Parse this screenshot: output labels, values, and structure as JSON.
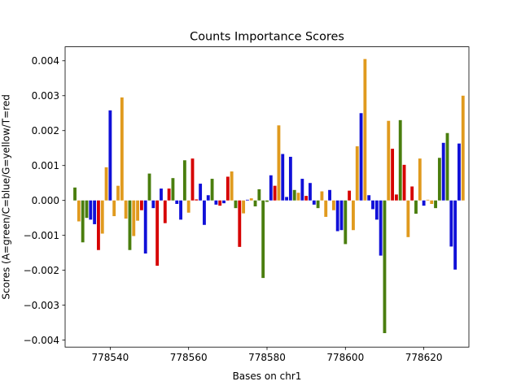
{
  "chart_data": {
    "type": "bar",
    "title": "Counts Importance Scores",
    "xlabel": "Bases on chr1",
    "ylabel": "Scores (A=green/C=blue/G=yellow/T=red",
    "xlim": [
      778528.5,
      778631.5
    ],
    "ylim": [
      -0.0042,
      0.0044
    ],
    "xticks": [
      778540,
      778560,
      778580,
      778600,
      778620
    ],
    "xtick_labels": [
      "778540",
      "778560",
      "778580",
      "778600",
      "778620"
    ],
    "yticks": [
      -0.004,
      -0.003,
      -0.002,
      -0.001,
      0.0,
      0.001,
      0.002,
      0.003,
      0.004
    ],
    "ytick_labels": [
      "−0.004",
      "−0.003",
      "−0.002",
      "−0.001",
      "0.000",
      "0.001",
      "0.002",
      "0.003",
      "0.004"
    ],
    "grid": false,
    "base_colors": {
      "A": "#4a7e0e",
      "C": "#1010d8",
      "G": "#e09a1e",
      "T": "#d60000"
    },
    "bars": [
      {
        "x": 778531,
        "base": "A",
        "value": 0.00037
      },
      {
        "x": 778532,
        "base": "G",
        "value": -0.0006
      },
      {
        "x": 778533,
        "base": "A",
        "value": -0.0012
      },
      {
        "x": 778534,
        "base": "A",
        "value": -0.0005
      },
      {
        "x": 778535,
        "base": "C",
        "value": -0.00055
      },
      {
        "x": 778536,
        "base": "C",
        "value": -0.00068
      },
      {
        "x": 778537,
        "base": "T",
        "value": -0.00142
      },
      {
        "x": 778538,
        "base": "G",
        "value": -0.00095
      },
      {
        "x": 778539,
        "base": "G",
        "value": 0.00095
      },
      {
        "x": 778540,
        "base": "C",
        "value": 0.00258
      },
      {
        "x": 778541,
        "base": "G",
        "value": -0.00045
      },
      {
        "x": 778542,
        "base": "G",
        "value": 0.00042
      },
      {
        "x": 778543,
        "base": "G",
        "value": 0.00295
      },
      {
        "x": 778544,
        "base": "G",
        "value": -0.00052
      },
      {
        "x": 778545,
        "base": "A",
        "value": -0.00142
      },
      {
        "x": 778546,
        "base": "G",
        "value": -0.00102
      },
      {
        "x": 778547,
        "base": "G",
        "value": -0.00058
      },
      {
        "x": 778548,
        "base": "T",
        "value": -0.00028
      },
      {
        "x": 778549,
        "base": "C",
        "value": -0.00152
      },
      {
        "x": 778550,
        "base": "A",
        "value": 0.00077
      },
      {
        "x": 778551,
        "base": "C",
        "value": -0.00022
      },
      {
        "x": 778552,
        "base": "T",
        "value": -0.00187
      },
      {
        "x": 778553,
        "base": "C",
        "value": 0.00034
      },
      {
        "x": 778554,
        "base": "T",
        "value": -0.00065
      },
      {
        "x": 778555,
        "base": "T",
        "value": 0.00034
      },
      {
        "x": 778556,
        "base": "A",
        "value": 0.00064
      },
      {
        "x": 778557,
        "base": "C",
        "value": -0.0001
      },
      {
        "x": 778558,
        "base": "C",
        "value": -0.00055
      },
      {
        "x": 778559,
        "base": "A",
        "value": 0.00115
      },
      {
        "x": 778560,
        "base": "G",
        "value": -0.00035
      },
      {
        "x": 778561,
        "base": "T",
        "value": 0.0012
      },
      {
        "x": 778562,
        "base": "T",
        "value": 3e-05
      },
      {
        "x": 778563,
        "base": "C",
        "value": 0.00048
      },
      {
        "x": 778564,
        "base": "C",
        "value": -0.0007
      },
      {
        "x": 778565,
        "base": "C",
        "value": 0.00015
      },
      {
        "x": 778566,
        "base": "A",
        "value": 0.00062
      },
      {
        "x": 778567,
        "base": "C",
        "value": -0.00012
      },
      {
        "x": 778568,
        "base": "T",
        "value": -0.00015
      },
      {
        "x": 778569,
        "base": "C",
        "value": -8e-05
      },
      {
        "x": 778570,
        "base": "T",
        "value": 0.00068
      },
      {
        "x": 778571,
        "base": "G",
        "value": 0.00083
      },
      {
        "x": 778572,
        "base": "A",
        "value": -0.00022
      },
      {
        "x": 778573,
        "base": "T",
        "value": -0.00133
      },
      {
        "x": 778574,
        "base": "G",
        "value": -0.00037
      },
      {
        "x": 778575,
        "base": "C",
        "value": 2e-05
      },
      {
        "x": 778576,
        "base": "G",
        "value": 6e-05
      },
      {
        "x": 778577,
        "base": "A",
        "value": -0.00017
      },
      {
        "x": 778578,
        "base": "A",
        "value": 0.00032
      },
      {
        "x": 778579,
        "base": "A",
        "value": -0.00222
      },
      {
        "x": 778580,
        "base": "A",
        "value": -4e-05
      },
      {
        "x": 778581,
        "base": "C",
        "value": 0.00072
      },
      {
        "x": 778582,
        "base": "T",
        "value": 0.00042
      },
      {
        "x": 778583,
        "base": "G",
        "value": 0.00215
      },
      {
        "x": 778584,
        "base": "C",
        "value": 0.00133
      },
      {
        "x": 778585,
        "base": "C",
        "value": 0.0001
      },
      {
        "x": 778586,
        "base": "C",
        "value": 0.00125
      },
      {
        "x": 778587,
        "base": "A",
        "value": 0.0003
      },
      {
        "x": 778588,
        "base": "G",
        "value": 0.00022
      },
      {
        "x": 778589,
        "base": "C",
        "value": 0.00062
      },
      {
        "x": 778590,
        "base": "T",
        "value": 0.00013
      },
      {
        "x": 778591,
        "base": "C",
        "value": 0.0005
      },
      {
        "x": 778592,
        "base": "C",
        "value": -0.00012
      },
      {
        "x": 778593,
        "base": "A",
        "value": -0.00022
      },
      {
        "x": 778594,
        "base": "G",
        "value": 0.00026
      },
      {
        "x": 778595,
        "base": "G",
        "value": -0.00047
      },
      {
        "x": 778596,
        "base": "C",
        "value": 0.0003
      },
      {
        "x": 778597,
        "base": "G",
        "value": -0.00028
      },
      {
        "x": 778598,
        "base": "C",
        "value": -0.00088
      },
      {
        "x": 778599,
        "base": "C",
        "value": -0.00085
      },
      {
        "x": 778600,
        "base": "A",
        "value": -0.00125
      },
      {
        "x": 778601,
        "base": "T",
        "value": 0.00028
      },
      {
        "x": 778602,
        "base": "G",
        "value": -0.00085
      },
      {
        "x": 778603,
        "base": "G",
        "value": 0.00155
      },
      {
        "x": 778604,
        "base": "C",
        "value": 0.0025
      },
      {
        "x": 778605,
        "base": "G",
        "value": 0.00405
      },
      {
        "x": 778606,
        "base": "C",
        "value": 0.00015
      },
      {
        "x": 778607,
        "base": "C",
        "value": -0.00025
      },
      {
        "x": 778608,
        "base": "C",
        "value": -0.00055
      },
      {
        "x": 778609,
        "base": "C",
        "value": -0.00158
      },
      {
        "x": 778610,
        "base": "A",
        "value": -0.0038
      },
      {
        "x": 778611,
        "base": "G",
        "value": 0.00228
      },
      {
        "x": 778612,
        "base": "T",
        "value": 0.00148
      },
      {
        "x": 778613,
        "base": "T",
        "value": 0.00017
      },
      {
        "x": 778614,
        "base": "A",
        "value": 0.0023
      },
      {
        "x": 778615,
        "base": "T",
        "value": 0.00102
      },
      {
        "x": 778616,
        "base": "G",
        "value": -0.00105
      },
      {
        "x": 778617,
        "base": "T",
        "value": 0.0004
      },
      {
        "x": 778618,
        "base": "A",
        "value": -0.00038
      },
      {
        "x": 778619,
        "base": "G",
        "value": 0.0012
      },
      {
        "x": 778620,
        "base": "C",
        "value": -0.00015
      },
      {
        "x": 778621,
        "base": "G",
        "value": 2e-05
      },
      {
        "x": 778622,
        "base": "G",
        "value": -0.0001
      },
      {
        "x": 778623,
        "base": "A",
        "value": -0.00022
      },
      {
        "x": 778624,
        "base": "A",
        "value": 0.00122
      },
      {
        "x": 778625,
        "base": "C",
        "value": 0.00165
      },
      {
        "x": 778626,
        "base": "A",
        "value": 0.00193
      },
      {
        "x": 778627,
        "base": "C",
        "value": -0.00132
      },
      {
        "x": 778628,
        "base": "C",
        "value": -0.00198
      },
      {
        "x": 778629,
        "base": "C",
        "value": 0.00163
      },
      {
        "x": 778630,
        "base": "G",
        "value": 0.003
      }
    ]
  }
}
